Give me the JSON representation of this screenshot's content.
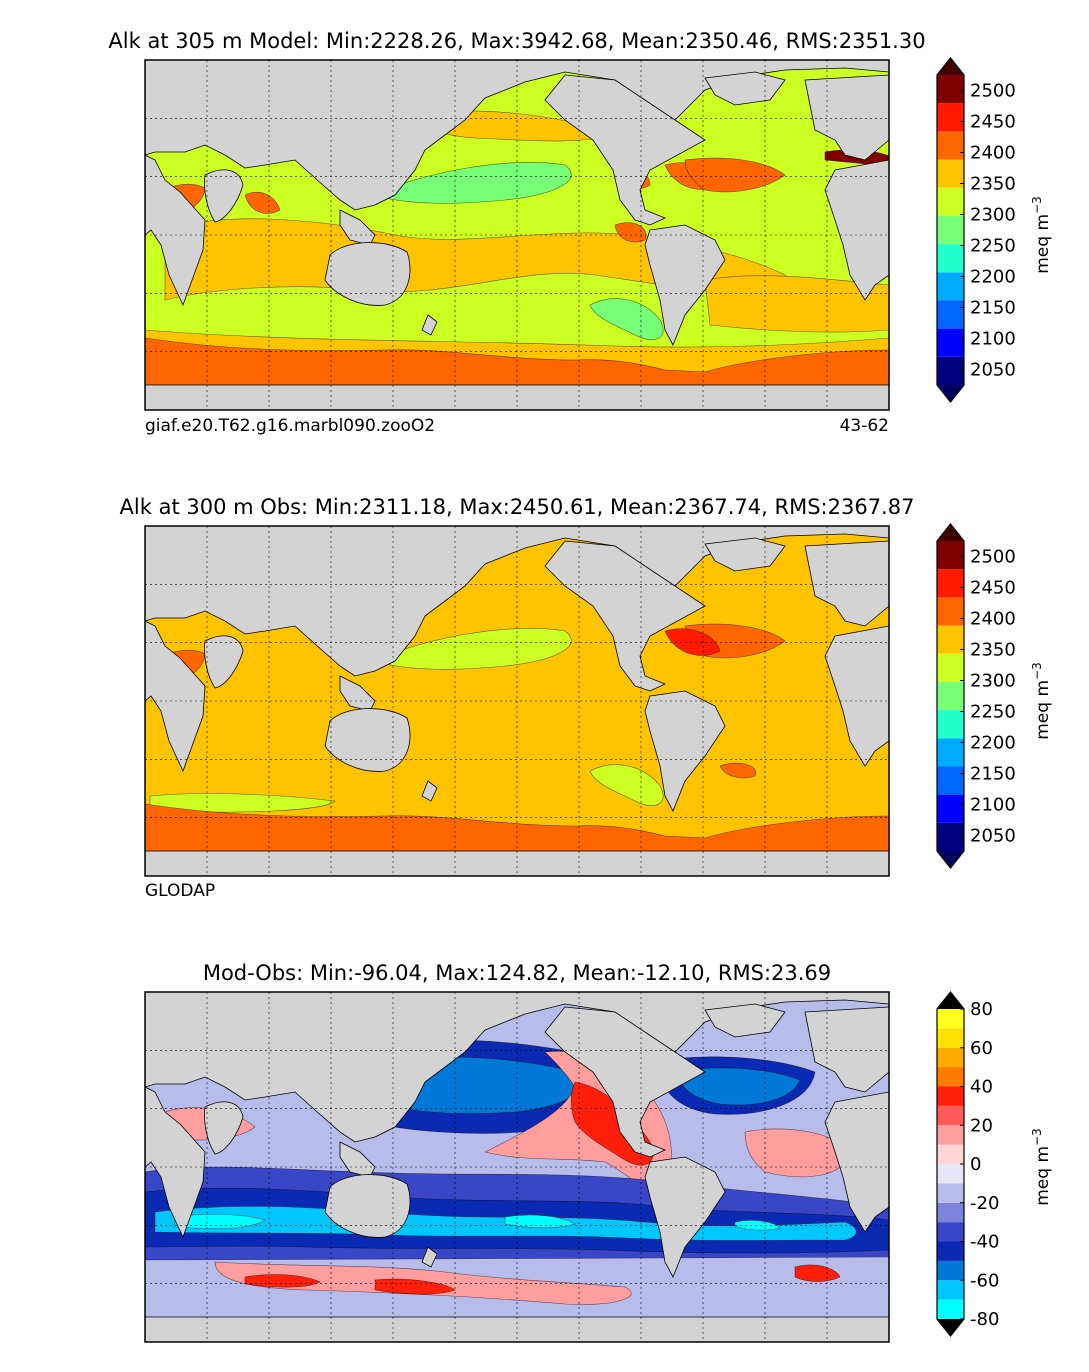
{
  "colors": {
    "land": "#d3d3d3",
    "frame": "#000000",
    "seaice": "#ffffff",
    "alk_levels": [
      "#000080",
      "#0000ff",
      "#0066ff",
      "#00aaff",
      "#22ffcc",
      "#77ff77",
      "#ccff22",
      "#ffc400",
      "#ff6600",
      "#ff1a00",
      "#800000"
    ],
    "alk_under": "#000060",
    "alk_over": "#400000",
    "diff_levels": [
      "#00ffff",
      "#00c8ff",
      "#0078d7",
      "#0a2ab4",
      "#3a46c8",
      "#7c84dc",
      "#b8bcea",
      "#e6e6f4",
      "#ffd6d6",
      "#ff9e9e",
      "#ff5a5a",
      "#ff1f0a",
      "#ff7a00",
      "#ffaa00",
      "#ffe000",
      "#ffff1e"
    ],
    "diff_under": "#000000",
    "diff_over": "#000000"
  },
  "panels": [
    {
      "id": "model",
      "title": "Alk at 305 m Model: Min:2228.26, Max:3942.68, Mean:2350.46, RMS:2351.30",
      "caption_left": "giaf.e20.T62.g16.marbl090.zooO2",
      "caption_right": "43-62",
      "colorbar": {
        "label": "meq m",
        "label_exp": "−3",
        "ticks": [
          "2050",
          "2100",
          "2150",
          "2200",
          "2250",
          "2300",
          "2350",
          "2400",
          "2450",
          "2500"
        ],
        "range": [
          2025,
          2525
        ],
        "step": 50
      },
      "field": {
        "base": 6,
        "basins": [
          {
            "name": "north-pacific-low",
            "level": 5
          },
          {
            "name": "south-pacific-low",
            "level": 5
          },
          {
            "name": "tropical-band",
            "level": 7
          },
          {
            "name": "north-pacific-high",
            "level": 7
          },
          {
            "name": "arabian-sea",
            "level": 8
          },
          {
            "name": "bay-of-bengal",
            "level": 8
          },
          {
            "name": "east-pacific-tongue",
            "level": 8
          },
          {
            "name": "caribbean",
            "level": 8
          },
          {
            "name": "gulf-of-mexico",
            "level": 8
          },
          {
            "name": "north-atlantic",
            "level": 8
          },
          {
            "name": "mediterranean",
            "level": 10
          },
          {
            "name": "south-atlantic",
            "level": 7
          },
          {
            "name": "southern-ocean-band",
            "level": 7
          },
          {
            "name": "southern-ocean-high",
            "level": 8
          }
        ]
      }
    },
    {
      "id": "obs",
      "title": "Alk at 300 m Obs: Min:2311.18, Max:2450.61, Mean:2367.74, RMS:2367.87",
      "caption_left": "GLODAP",
      "caption_right": "",
      "colorbar": {
        "label": "meq m",
        "label_exp": "−3",
        "ticks": [
          "2050",
          "2100",
          "2150",
          "2200",
          "2250",
          "2300",
          "2350",
          "2400",
          "2450",
          "2500"
        ],
        "range": [
          2025,
          2525
        ],
        "step": 50
      },
      "field": {
        "base": 7,
        "basins": [
          {
            "name": "north-pacific-low",
            "level": 6
          },
          {
            "name": "south-pacific-low",
            "level": 6
          },
          {
            "name": "south-indian-low",
            "level": 6
          },
          {
            "name": "arabian-sea",
            "level": 8
          },
          {
            "name": "north-atlantic",
            "level": 8
          },
          {
            "name": "caribbean",
            "level": 9
          },
          {
            "name": "south-atlantic-high",
            "level": 8
          },
          {
            "name": "southern-ocean-high",
            "level": 8
          }
        ]
      }
    },
    {
      "id": "diff",
      "title": "Mod-Obs: Min:-96.04, Max:124.82, Mean:-12.10, RMS:23.69",
      "caption_left": "",
      "caption_right": "",
      "colorbar": {
        "label": "meq m",
        "label_exp": "−3",
        "ticks": [
          "-80",
          "-60",
          "-40",
          "-20",
          "0",
          "20",
          "40",
          "60",
          "80"
        ],
        "range": [
          -80,
          80
        ],
        "step": 10
      },
      "field": {
        "base": 6,
        "basins": [
          {
            "name": "north-pacific-deep",
            "level": 3
          },
          {
            "name": "north-pacific-core",
            "level": 2
          },
          {
            "name": "east-pacific-pos",
            "level": 9
          },
          {
            "name": "east-pacific-core",
            "level": 11
          },
          {
            "name": "indian-pos",
            "level": 9
          },
          {
            "name": "south-band-outer",
            "level": 4
          },
          {
            "name": "south-band-deep",
            "level": 3
          },
          {
            "name": "south-band-core",
            "level": 1
          },
          {
            "name": "south-band-min",
            "level": 0
          },
          {
            "name": "north-atlantic-deep",
            "level": 3
          },
          {
            "name": "north-atlantic-core",
            "level": 2
          },
          {
            "name": "south-atlantic-pos",
            "level": 9
          },
          {
            "name": "southern-ocean-pos",
            "level": 9
          },
          {
            "name": "southern-ocean-red",
            "level": 11
          }
        ]
      }
    }
  ]
}
